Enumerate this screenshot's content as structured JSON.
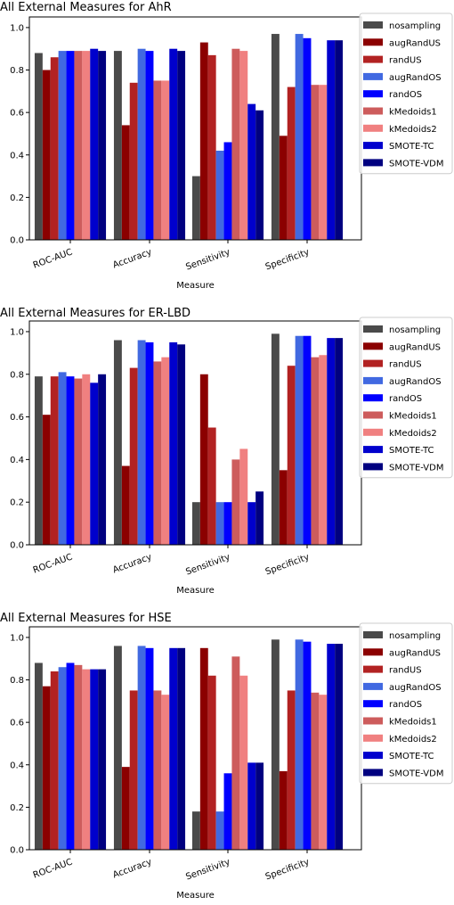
{
  "chart_data": [
    {
      "type": "bar",
      "title": "All External Measures for AhR",
      "xlabel": "Measure",
      "ylabel": "",
      "ylim": [
        0,
        1.05
      ],
      "yticks": [
        0.0,
        0.2,
        0.4,
        0.6,
        0.8,
        1.0
      ],
      "legend_position": "top-right",
      "grid": false,
      "categories": [
        "ROC-AUC",
        "Accuracy",
        "Sensitivity",
        "Specificity"
      ],
      "series": [
        {
          "name": "nosampling",
          "color": "#4a4a4a",
          "values": [
            0.88,
            0.89,
            0.3,
            0.97
          ]
        },
        {
          "name": "augRandUS",
          "color": "#8b0000",
          "values": [
            0.8,
            0.54,
            0.93,
            0.49
          ]
        },
        {
          "name": "randUS",
          "color": "#b22222",
          "values": [
            0.86,
            0.74,
            0.87,
            0.72
          ]
        },
        {
          "name": "augRandOS",
          "color": "#4169e1",
          "values": [
            0.89,
            0.9,
            0.42,
            0.97
          ]
        },
        {
          "name": "randOS",
          "color": "#0000ff",
          "values": [
            0.89,
            0.89,
            0.46,
            0.95
          ]
        },
        {
          "name": "kMedoids1",
          "color": "#cd5c5c",
          "values": [
            0.89,
            0.75,
            0.9,
            0.73
          ]
        },
        {
          "name": "kMedoids2",
          "color": "#f08080",
          "values": [
            0.89,
            0.75,
            0.89,
            0.73
          ]
        },
        {
          "name": "SMOTE-TC",
          "color": "#0000cd",
          "values": [
            0.9,
            0.9,
            0.64,
            0.94
          ]
        },
        {
          "name": "SMOTE-VDM",
          "color": "#000080",
          "values": [
            0.89,
            0.89,
            0.61,
            0.94
          ]
        }
      ]
    },
    {
      "type": "bar",
      "title": "All External Measures for ER-LBD",
      "xlabel": "Measure",
      "ylabel": "",
      "ylim": [
        0,
        1.05
      ],
      "yticks": [
        0.0,
        0.2,
        0.4,
        0.6,
        0.8,
        1.0
      ],
      "legend_position": "top-right",
      "grid": false,
      "categories": [
        "ROC-AUC",
        "Accuracy",
        "Sensitivity",
        "Specificity"
      ],
      "series": [
        {
          "name": "nosampling",
          "color": "#4a4a4a",
          "values": [
            0.79,
            0.96,
            0.2,
            0.99
          ]
        },
        {
          "name": "augRandUS",
          "color": "#8b0000",
          "values": [
            0.61,
            0.37,
            0.8,
            0.35
          ]
        },
        {
          "name": "randUS",
          "color": "#b22222",
          "values": [
            0.79,
            0.83,
            0.55,
            0.84
          ]
        },
        {
          "name": "augRandOS",
          "color": "#4169e1",
          "values": [
            0.81,
            0.96,
            0.2,
            0.98
          ]
        },
        {
          "name": "randOS",
          "color": "#0000ff",
          "values": [
            0.79,
            0.95,
            0.2,
            0.98
          ]
        },
        {
          "name": "kMedoids1",
          "color": "#cd5c5c",
          "values": [
            0.78,
            0.86,
            0.4,
            0.88
          ]
        },
        {
          "name": "kMedoids2",
          "color": "#f08080",
          "values": [
            0.8,
            0.88,
            0.45,
            0.89
          ]
        },
        {
          "name": "SMOTE-TC",
          "color": "#0000cd",
          "values": [
            0.76,
            0.95,
            0.2,
            0.97
          ]
        },
        {
          "name": "SMOTE-VDM",
          "color": "#000080",
          "values": [
            0.8,
            0.94,
            0.25,
            0.97
          ]
        }
      ]
    },
    {
      "type": "bar",
      "title": "All External Measures for HSE",
      "xlabel": "Measure",
      "ylabel": "",
      "ylim": [
        0,
        1.05
      ],
      "yticks": [
        0.0,
        0.2,
        0.4,
        0.6,
        0.8,
        1.0
      ],
      "legend_position": "top-right",
      "grid": false,
      "categories": [
        "ROC-AUC",
        "Accuracy",
        "Sensitivity",
        "Specificity"
      ],
      "series": [
        {
          "name": "nosampling",
          "color": "#4a4a4a",
          "values": [
            0.88,
            0.96,
            0.18,
            0.99
          ]
        },
        {
          "name": "augRandUS",
          "color": "#8b0000",
          "values": [
            0.77,
            0.39,
            0.95,
            0.37
          ]
        },
        {
          "name": "randUS",
          "color": "#b22222",
          "values": [
            0.84,
            0.75,
            0.82,
            0.75
          ]
        },
        {
          "name": "augRandOS",
          "color": "#4169e1",
          "values": [
            0.86,
            0.96,
            0.18,
            0.99
          ]
        },
        {
          "name": "randOS",
          "color": "#0000ff",
          "values": [
            0.88,
            0.95,
            0.36,
            0.98
          ]
        },
        {
          "name": "kMedoids1",
          "color": "#cd5c5c",
          "values": [
            0.87,
            0.75,
            0.91,
            0.74
          ]
        },
        {
          "name": "kMedoids2",
          "color": "#f08080",
          "values": [
            0.85,
            0.73,
            0.82,
            0.73
          ]
        },
        {
          "name": "SMOTE-TC",
          "color": "#0000cd",
          "values": [
            0.85,
            0.95,
            0.41,
            0.97
          ]
        },
        {
          "name": "SMOTE-VDM",
          "color": "#000080",
          "values": [
            0.85,
            0.95,
            0.41,
            0.97
          ]
        }
      ]
    }
  ]
}
